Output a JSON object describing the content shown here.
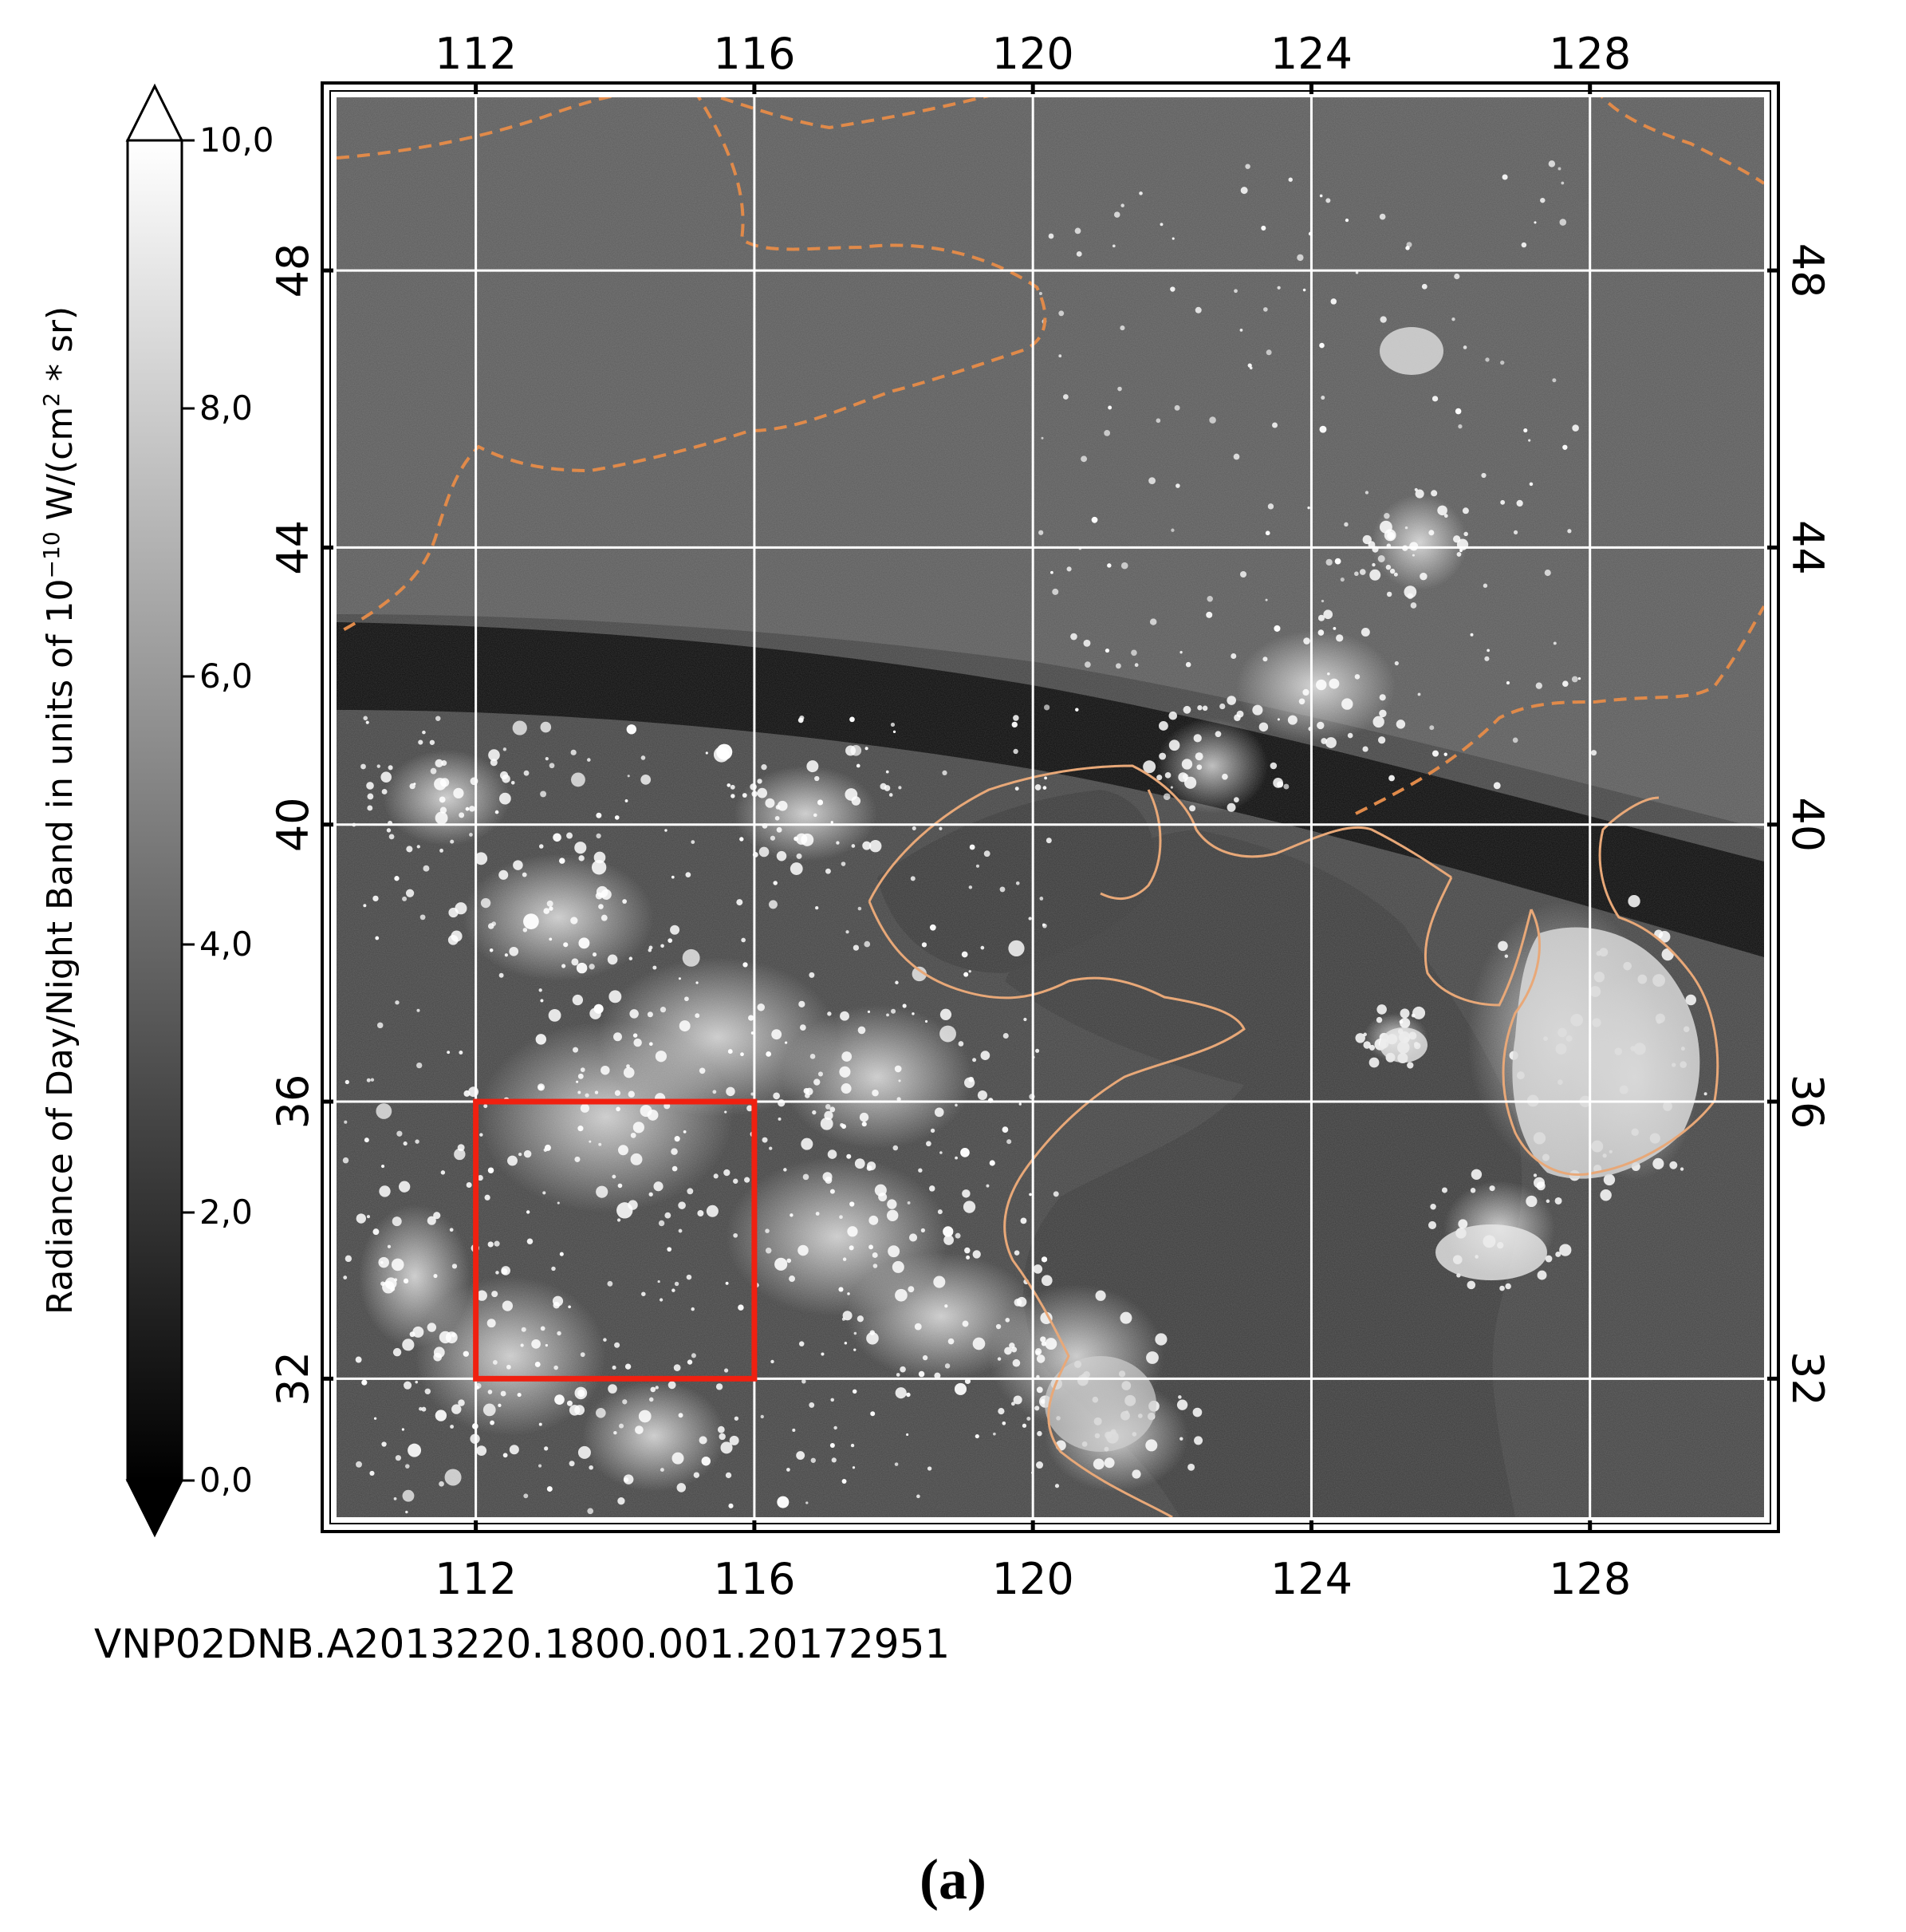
{
  "figure": {
    "panel_label": "(a)",
    "granule_id": "VNP02DNB.A2013220.1800.001.20172951"
  },
  "colorbar": {
    "label_pre": "Radiance of Day/Night Band in units of 10",
    "label_exp": "−10",
    "label_mid": " W/(cm",
    "label_sq": "2",
    "label_post": " * sr)",
    "ticks": [
      "0,0",
      "2,0",
      "4,0",
      "6,0",
      "8,0",
      "10,0"
    ],
    "tick_values": [
      0,
      2,
      4,
      6,
      8,
      10
    ],
    "range": [
      0,
      10
    ],
    "extend": "both",
    "colormap": "grayscale"
  },
  "map": {
    "lon_ticks": [
      "112",
      "116",
      "120",
      "124",
      "128"
    ],
    "lon_values": [
      112,
      116,
      120,
      124,
      128
    ],
    "lat_ticks": [
      "48",
      "44",
      "40",
      "36",
      "32"
    ],
    "lat_values": [
      48,
      44,
      40,
      36,
      32
    ],
    "lon_range": [
      110,
      130.5
    ],
    "lat_range": [
      30,
      50.5
    ],
    "grid": true,
    "grid_color": "#ffffff",
    "coastline_color": "#e8a878",
    "border_color": "#e08a4a",
    "highlight_box": {
      "lon": [
        112,
        116
      ],
      "lat": [
        32,
        36
      ],
      "color": "#f02010"
    }
  }
}
